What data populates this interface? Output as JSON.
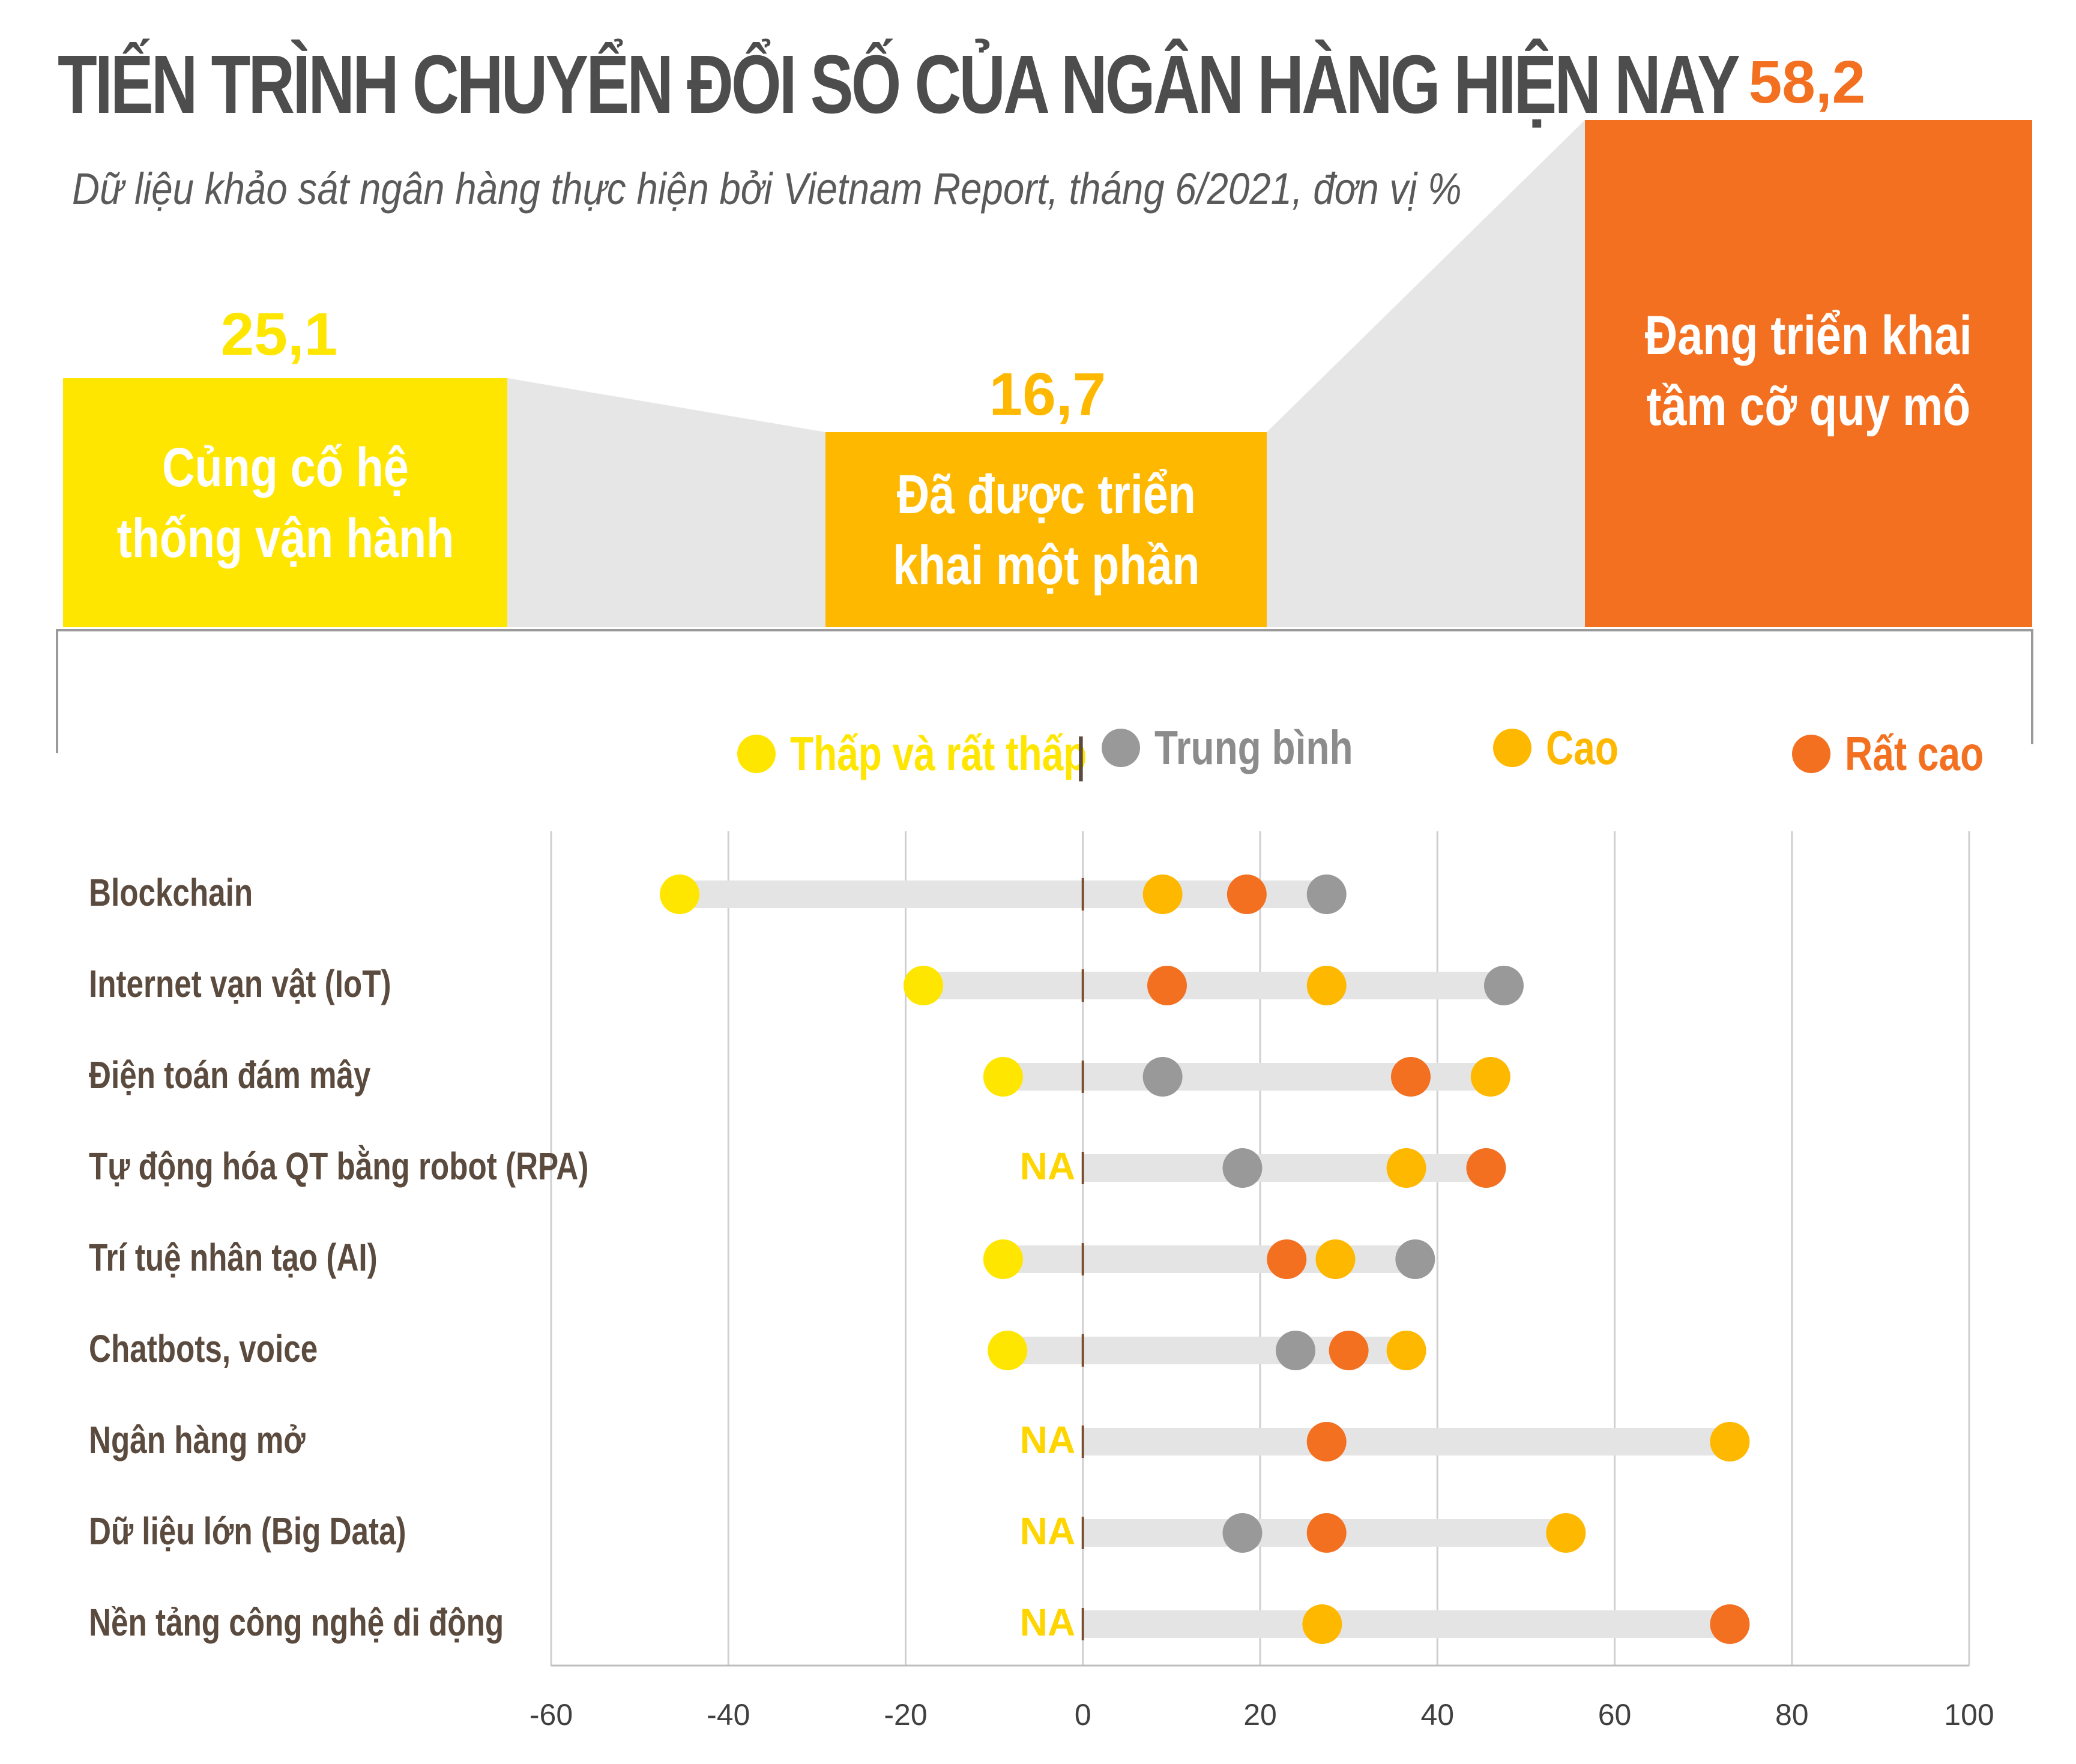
{
  "title": "TIẾN TRÌNH CHUYỂN ĐỔI SỐ CỦA NGÂN HÀNG HIỆN NAY",
  "subtitle": "Dữ liệu khảo sát ngân hàng thực hiện bởi Vietnam Report, tháng 6/2021,  đơn vị %",
  "stages": [
    {
      "label_line1": "Củng cố hệ",
      "label_line2": "thống vận hành",
      "value": "25,1",
      "color": "#ffe600",
      "value_color": "#ffe600"
    },
    {
      "label_line1": "Đã được triển",
      "label_line2": "khai một phần",
      "value": "16,7",
      "color": "#ffb800",
      "value_color": "#ffb800"
    },
    {
      "label_line1": "Đang triển khai",
      "label_line2": "tầm cỡ quy mô",
      "value": "58,2",
      "color": "#f37021",
      "value_color": "#f37021"
    }
  ],
  "legend": [
    {
      "label": "Thấp và rất thấp",
      "color": "#ffe600"
    },
    {
      "label": "Trung bình",
      "color": "#999999"
    },
    {
      "label": "Cao",
      "color": "#ffb800"
    },
    {
      "label": "Rất cao",
      "color": "#f37021"
    }
  ],
  "na_text": "NA",
  "chart_data": {
    "type": "dot-range",
    "title": "TIẾN TRÌNH CHUYỂN ĐỔI SỐ CỦA NGÂN HÀNG HIỆN NAY",
    "xlim": [
      -60,
      100
    ],
    "x_ticks": [
      "-60",
      "-40",
      "-20",
      "0",
      "20",
      "40",
      "60",
      "80",
      "100"
    ],
    "x_tick_values": [
      -60,
      -40,
      -20,
      0,
      20,
      40,
      60,
      80,
      100
    ],
    "categories": [
      "Blockchain",
      "Internet vạn vật (IoT)",
      "Điện toán đám mây",
      "Tự động hóa QT bằng robot (RPA)",
      "Trí tuệ nhân tạo (AI)",
      "Chatbots, voice",
      "Ngân hàng mở",
      "Dữ liệu lớn (Big Data)",
      "Nền tảng công nghệ di động"
    ],
    "series": [
      {
        "name": "Thấp và rất thấp",
        "color": "#ffe600",
        "values": [
          -45.5,
          -18,
          -9,
          null,
          -9,
          -8.5,
          null,
          null,
          null
        ]
      },
      {
        "name": "Trung bình",
        "color": "#999999",
        "values": [
          27.5,
          47.5,
          9,
          18,
          37.5,
          24,
          null,
          18,
          null
        ]
      },
      {
        "name": "Cao",
        "color": "#ffb800",
        "values": [
          9,
          27.5,
          46,
          36.5,
          28.5,
          36.5,
          73,
          54.5,
          27
        ]
      },
      {
        "name": "Rất cao",
        "color": "#f37021",
        "values": [
          18.5,
          9.5,
          37,
          45.5,
          23,
          30,
          27.5,
          27.5,
          73
        ]
      }
    ],
    "grid": true
  }
}
